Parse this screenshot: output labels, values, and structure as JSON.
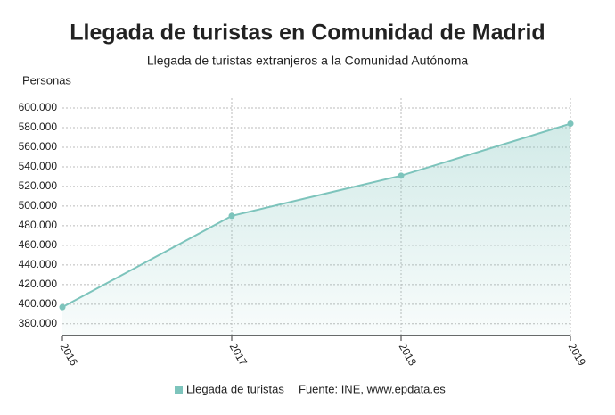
{
  "chart_data": {
    "type": "line",
    "title": "Llegada de turistas en Comunidad de Madrid",
    "subtitle": "Llegada de turistas extranjeros a la Comunidad Autónoma",
    "y_label": "Personas",
    "categories": [
      "2016",
      "2017",
      "2018",
      "2019"
    ],
    "series": [
      {
        "name": "Llegada de turistas",
        "color": "#7dc4bc",
        "values": [
          397000,
          490000,
          531000,
          584000
        ]
      }
    ],
    "ylim": [
      368000,
      610000
    ],
    "yticks": [
      {
        "value": 380000,
        "label": "380.000"
      },
      {
        "value": 400000,
        "label": "400.000"
      },
      {
        "value": 420000,
        "label": "420.000"
      },
      {
        "value": 440000,
        "label": "440.000"
      },
      {
        "value": 460000,
        "label": "460.000"
      },
      {
        "value": 480000,
        "label": "480.000"
      },
      {
        "value": 500000,
        "label": "500.000"
      },
      {
        "value": 520000,
        "label": "520.000"
      },
      {
        "value": 540000,
        "label": "540.000"
      },
      {
        "value": 560000,
        "label": "560.000"
      },
      {
        "value": 580000,
        "label": "580.000"
      },
      {
        "value": 600000,
        "label": "600.000"
      }
    ],
    "grid": true,
    "source": "Fuente: INE, www.epdata.es"
  }
}
